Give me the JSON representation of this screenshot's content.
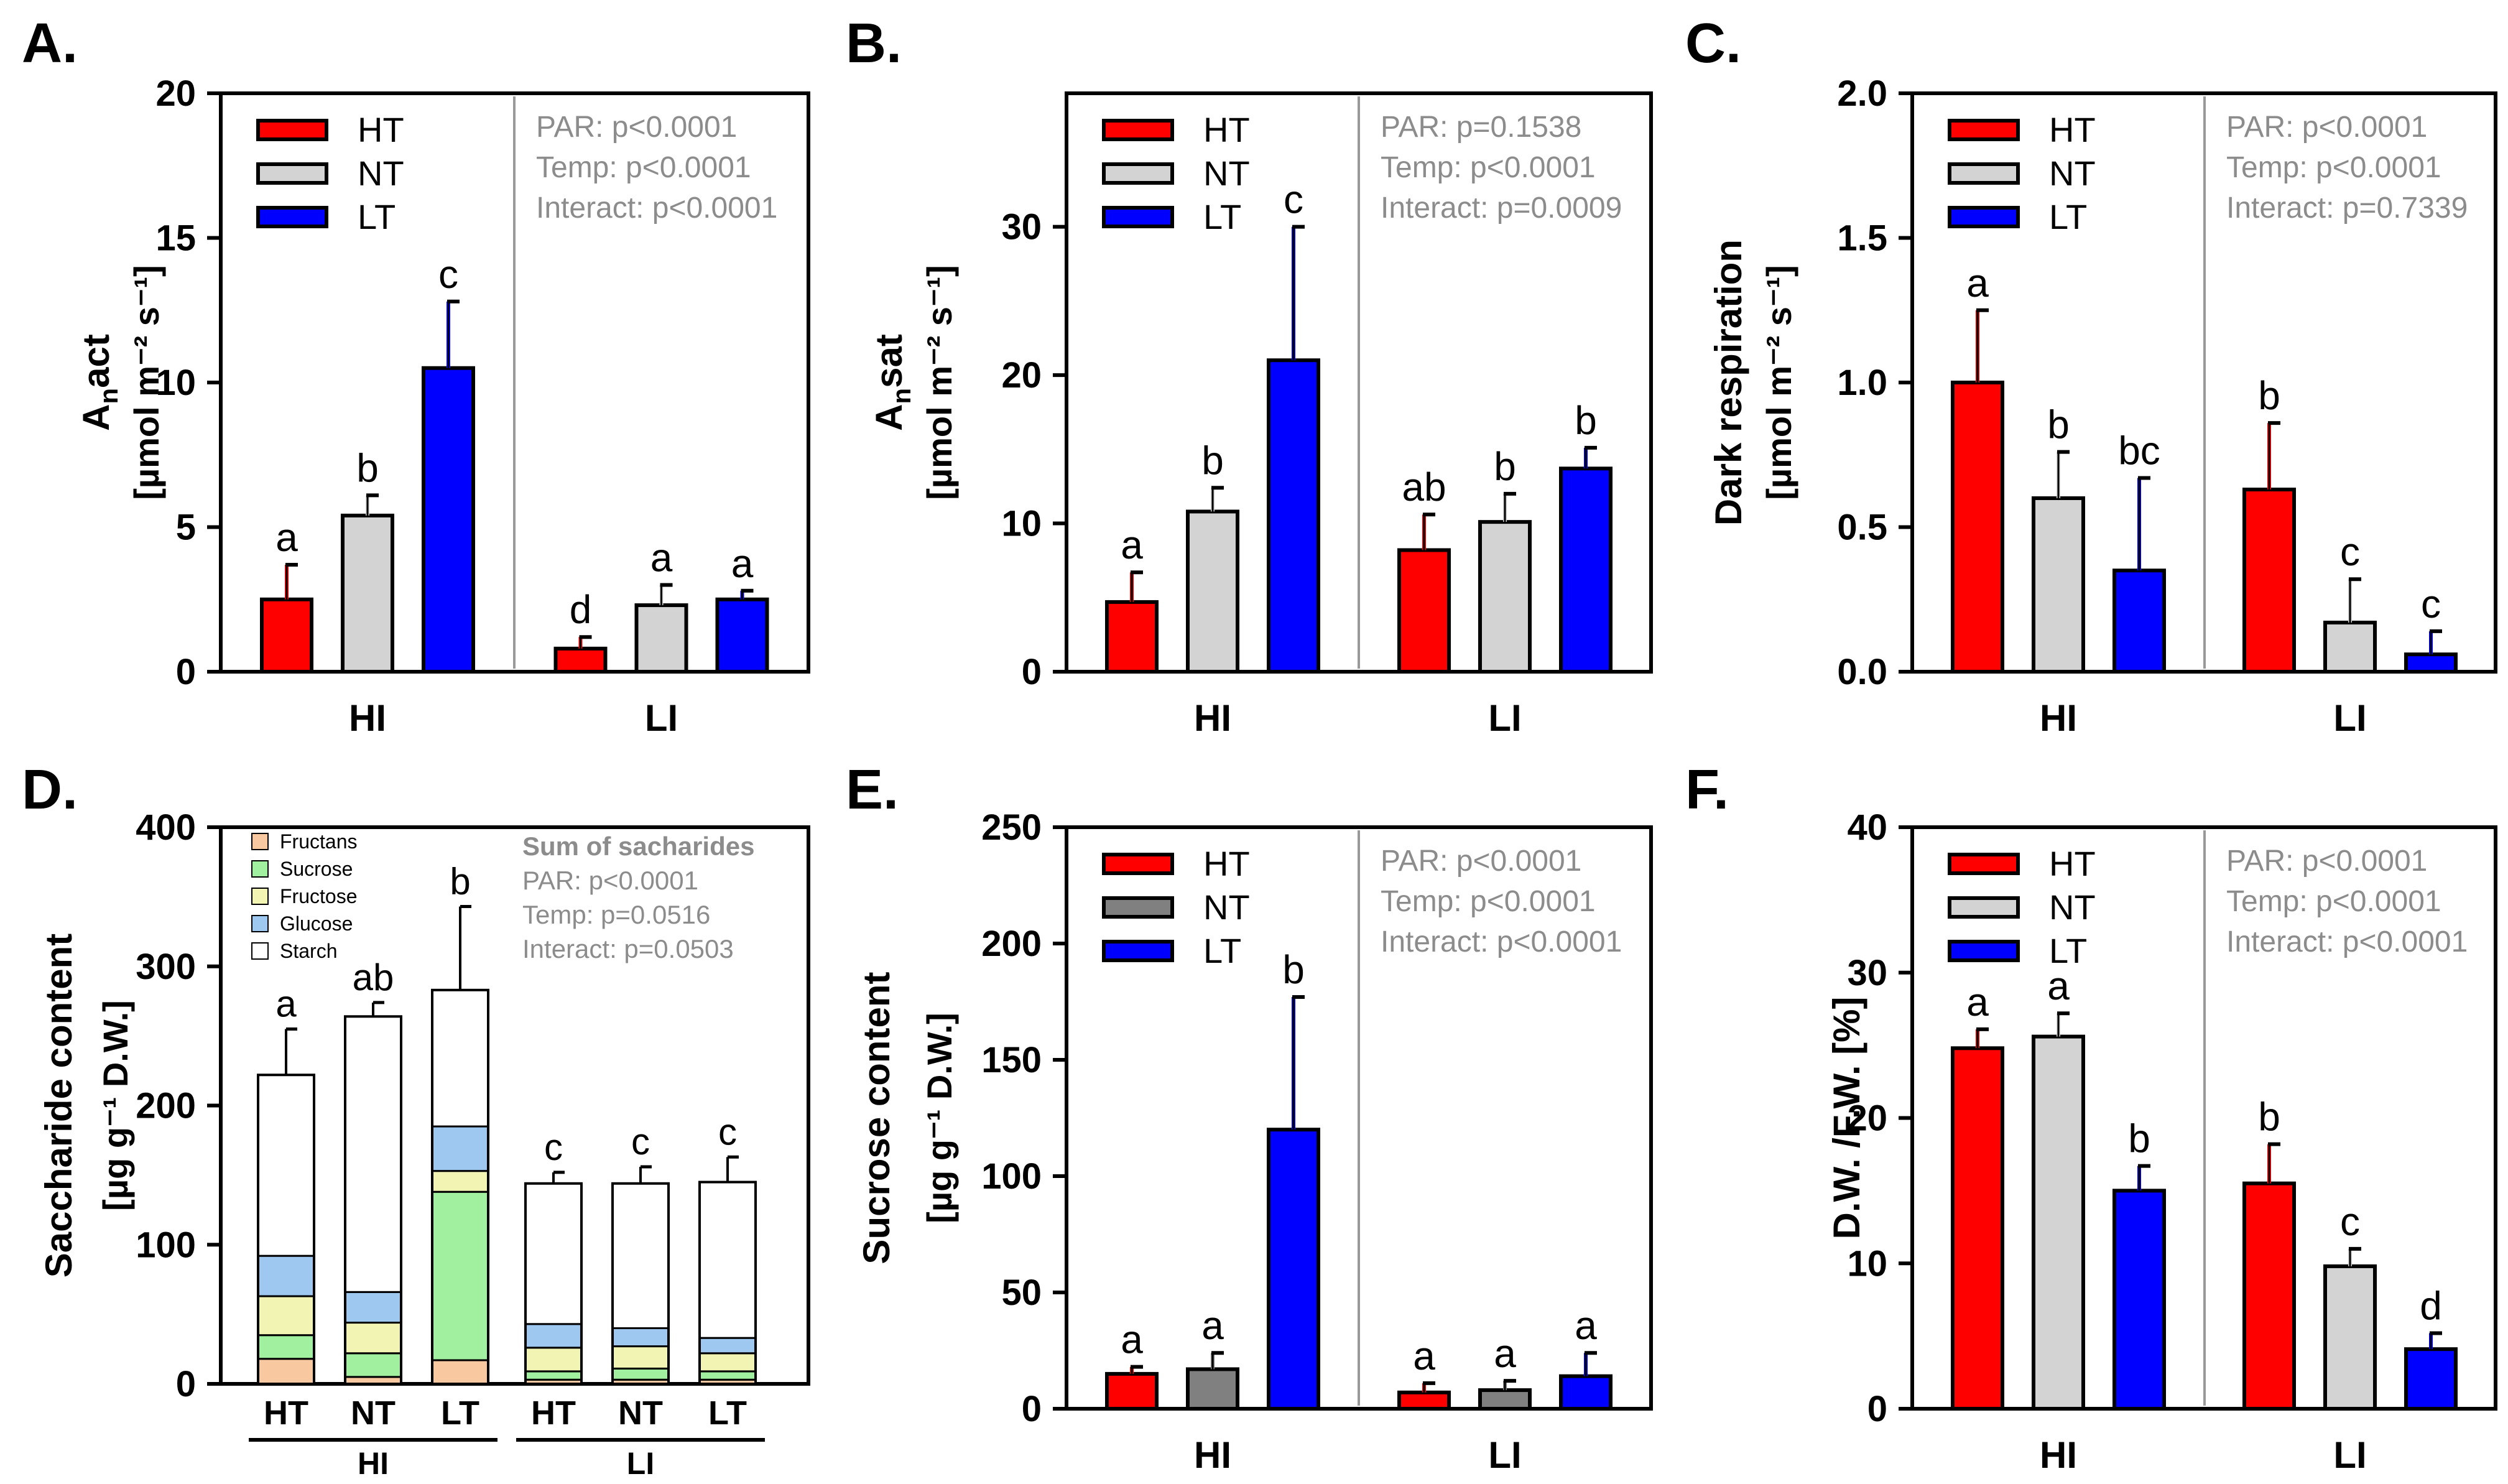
{
  "colors": {
    "HT": "#ff0000",
    "NT": "#d3d3d3",
    "NT_dark": "#808080",
    "LT": "#0000ff",
    "stats_text": "#8c8c8c",
    "axis": "#000000",
    "Fructans": "#f8c9a0",
    "Sucrose": "#a0f0a0",
    "Fructose": "#f2f4b4",
    "Glucose": "#9ec8f0",
    "Starch": "#ffffff"
  },
  "chart_data": [
    {
      "panel": "A.",
      "type": "bar",
      "ylabel_main": "A",
      "ylabel_sub": "n",
      "ylabel_main2": "act",
      "ylabel_unit": "[µmol m⁻² s⁻¹]",
      "ylim": [
        0,
        20
      ],
      "yticks": [
        0,
        5,
        10,
        15,
        20
      ],
      "groups": [
        "HI",
        "LI"
      ],
      "legend": [
        "HT",
        "NT",
        "LT"
      ],
      "stats": [
        "PAR: p<0.0001",
        "Temp: p<0.0001",
        "Interact: p<0.0001"
      ],
      "series": [
        {
          "name": "HT",
          "values": [
            2.5,
            0.8
          ],
          "errors": [
            1.2,
            0.4
          ],
          "letters": [
            "a",
            "d"
          ]
        },
        {
          "name": "NT",
          "values": [
            5.4,
            2.3
          ],
          "errors": [
            0.7,
            0.7
          ],
          "letters": [
            "b",
            "a"
          ]
        },
        {
          "name": "LT",
          "values": [
            10.5,
            2.5
          ],
          "errors": [
            2.3,
            0.3
          ],
          "letters": [
            "c",
            "a"
          ]
        }
      ]
    },
    {
      "panel": "B.",
      "type": "bar",
      "ylabel_main": "A",
      "ylabel_sub": "n",
      "ylabel_main2": "sat",
      "ylabel_unit": "[µmol m⁻² s⁻¹]",
      "ylim": [
        0,
        39
      ],
      "yticks": [
        0,
        10,
        20,
        30
      ],
      "groups": [
        "HI",
        "LI"
      ],
      "legend": [
        "HT",
        "NT",
        "LT"
      ],
      "stats": [
        "PAR: p=0.1538",
        "Temp: p<0.0001",
        "Interact: p=0.0009"
      ],
      "series": [
        {
          "name": "HT",
          "values": [
            4.7,
            8.2
          ],
          "errors": [
            2.0,
            2.4
          ],
          "letters": [
            "a",
            "ab"
          ]
        },
        {
          "name": "NT",
          "values": [
            10.8,
            10.1
          ],
          "errors": [
            1.6,
            1.9
          ],
          "letters": [
            "b",
            "b"
          ]
        },
        {
          "name": "LT",
          "values": [
            21.0,
            13.7
          ],
          "errors": [
            9.0,
            1.4
          ],
          "letters": [
            "c",
            "b"
          ]
        }
      ]
    },
    {
      "panel": "C.",
      "type": "bar",
      "ylabel_main": "Dark respiration",
      "ylabel_unit": "[µmol m⁻² s⁻¹]",
      "ylim": [
        0,
        2.0
      ],
      "yticks": [
        0.0,
        0.5,
        1.0,
        1.5,
        2.0
      ],
      "groups": [
        "HI",
        "LI"
      ],
      "legend": [
        "HT",
        "NT",
        "LT"
      ],
      "stats": [
        "PAR: p<0.0001",
        "Temp: p<0.0001",
        "Interact: p=0.7339"
      ],
      "series": [
        {
          "name": "HT",
          "values": [
            1.0,
            0.63
          ],
          "errors": [
            0.25,
            0.23
          ],
          "letters": [
            "a",
            "b"
          ]
        },
        {
          "name": "NT",
          "values": [
            0.6,
            0.17
          ],
          "errors": [
            0.16,
            0.15
          ],
          "letters": [
            "b",
            "c"
          ]
        },
        {
          "name": "LT",
          "values": [
            0.35,
            0.06
          ],
          "errors": [
            0.32,
            0.08
          ],
          "letters": [
            "bc",
            "c"
          ]
        }
      ]
    },
    {
      "panel": "D.",
      "type": "stacked-bar",
      "ylabel_main": "Saccharide content",
      "ylabel_unit": "[µg g⁻¹ D.W.]",
      "ylim": [
        0,
        400
      ],
      "yticks": [
        0,
        100,
        200,
        300,
        400
      ],
      "categories": [
        "HT",
        "NT",
        "LT",
        "HT",
        "NT",
        "LT"
      ],
      "groups": [
        "HI",
        "LI"
      ],
      "legend": [
        "Fructans",
        "Sucrose",
        "Fructose",
        "Glucose",
        "Starch"
      ],
      "stats_title": "Sum of sacharides",
      "stats": [
        "PAR: p<0.0001",
        "Temp: p=0.0516",
        "Interact: p=0.0503"
      ],
      "stacks": {
        "Fructans": [
          18,
          5,
          17,
          3,
          3,
          3
        ],
        "Sucrose": [
          17,
          17,
          121,
          6,
          8,
          6
        ],
        "Fructose": [
          28,
          22,
          15,
          17,
          16,
          13
        ],
        "Glucose": [
          29,
          22,
          32,
          17,
          13,
          11
        ],
        "Starch": [
          130,
          198,
          98,
          101,
          104,
          112
        ]
      },
      "totals": [
        222,
        264,
        283,
        144,
        144,
        145
      ],
      "errors": [
        33,
        10,
        60,
        8,
        12,
        18
      ],
      "letters": [
        "a",
        "ab",
        "b",
        "c",
        "c",
        "c"
      ]
    },
    {
      "panel": "E.",
      "type": "bar",
      "ylabel_main": "Sucrose content",
      "ylabel_unit": "[µg g⁻¹ D.W.]",
      "ylim": [
        0,
        250
      ],
      "yticks": [
        0,
        50,
        100,
        150,
        200,
        250
      ],
      "groups": [
        "HI",
        "LI"
      ],
      "legend": [
        "HT",
        "NT",
        "LT"
      ],
      "stats": [
        "PAR: p<0.0001",
        "Temp: p<0.0001",
        "Interact: p<0.0001"
      ],
      "series": [
        {
          "name": "HT",
          "values": [
            15,
            7
          ],
          "errors": [
            3,
            4
          ],
          "letters": [
            "a",
            "a"
          ]
        },
        {
          "name": "NT",
          "values": [
            17,
            8
          ],
          "errors": [
            7,
            4
          ],
          "letters": [
            "a",
            "a"
          ]
        },
        {
          "name": "LT",
          "values": [
            120,
            14
          ],
          "errors": [
            57,
            10
          ],
          "letters": [
            "b",
            "a"
          ]
        }
      ]
    },
    {
      "panel": "F.",
      "type": "bar",
      "ylabel_main": "D.W. /F.W. [%]",
      "ylabel_unit": "",
      "ylim": [
        0,
        40
      ],
      "yticks": [
        0,
        10,
        20,
        30,
        40
      ],
      "groups": [
        "HI",
        "LI"
      ],
      "legend": [
        "HT",
        "NT",
        "LT"
      ],
      "stats": [
        "PAR: p<0.0001",
        "Temp: p<0.0001",
        "Interact: p<0.0001"
      ],
      "series": [
        {
          "name": "HT",
          "values": [
            24.8,
            15.5
          ],
          "errors": [
            1.3,
            2.7
          ],
          "letters": [
            "a",
            "b"
          ]
        },
        {
          "name": "NT",
          "values": [
            25.6,
            9.8
          ],
          "errors": [
            1.6,
            1.2
          ],
          "letters": [
            "a",
            "c"
          ]
        },
        {
          "name": "LT",
          "values": [
            15.0,
            4.1
          ],
          "errors": [
            1.7,
            1.1
          ],
          "letters": [
            "b",
            "d"
          ]
        }
      ]
    }
  ]
}
